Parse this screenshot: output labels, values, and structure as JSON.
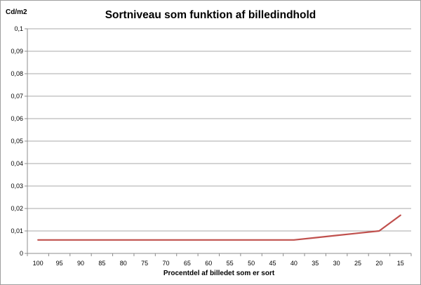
{
  "chart_data": {
    "type": "line",
    "title": "Sortniveau som funktion af billedindhold",
    "ylabel": "Cd/m2",
    "xlabel": "Procentdel af billedet som er sort",
    "categories": [
      "100",
      "95",
      "90",
      "85",
      "80",
      "75",
      "70",
      "65",
      "60",
      "55",
      "50",
      "45",
      "40",
      "35",
      "30",
      "25",
      "20",
      "15"
    ],
    "series": [
      {
        "values": [
          0.006,
          0.006,
          0.006,
          0.006,
          0.006,
          0.006,
          0.006,
          0.006,
          0.006,
          0.006,
          0.006,
          0.006,
          0.006,
          0.007,
          0.008,
          0.009,
          0.01,
          0.017
        ],
        "color": "#c0504d"
      }
    ],
    "ylim": [
      0,
      0.1
    ],
    "yticks": [
      "0",
      "0,01",
      "0,02",
      "0,03",
      "0,04",
      "0,05",
      "0,06",
      "0,07",
      "0,08",
      "0,09",
      "0,1"
    ],
    "grid": true,
    "legend": "none"
  }
}
